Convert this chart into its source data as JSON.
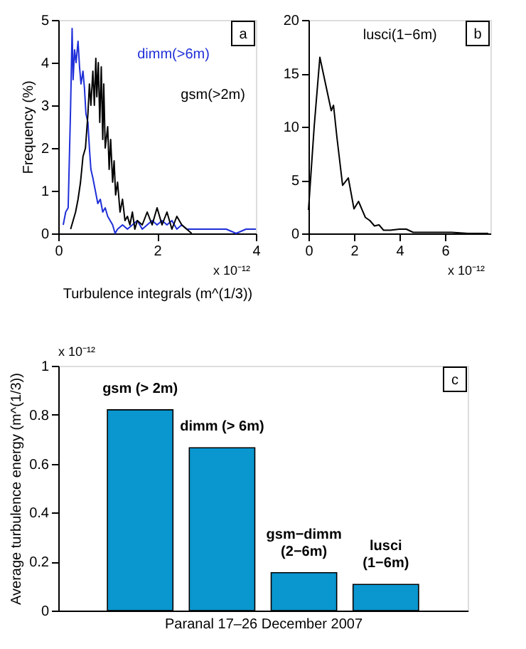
{
  "chart_data": [
    {
      "type": "line",
      "ylabel": "Frequency (%)",
      "xlabel": "Turbulence integrals (m^(1/3))",
      "xlim": [
        0,
        4
      ],
      "xticks": [
        0,
        2,
        4
      ],
      "ylim": [
        0,
        5
      ],
      "yticks": [
        0,
        1,
        2,
        3,
        4,
        5
      ],
      "grid": false,
      "annotations": [
        "a",
        "x 10⁻¹²"
      ],
      "series": [
        {
          "name": "dimm(>6m)",
          "color": "#1f2fd8",
          "x": [
            0.1,
            0.15,
            0.2,
            0.25,
            0.28,
            0.3,
            0.33,
            0.36,
            0.4,
            0.43,
            0.46,
            0.5,
            0.53,
            0.56,
            0.6,
            0.63,
            0.66,
            0.7,
            0.75,
            0.8,
            0.85,
            0.9,
            0.95,
            1.0,
            1.05,
            1.1,
            1.15,
            1.2,
            1.3,
            1.4,
            1.5,
            1.6,
            1.7,
            1.8,
            1.9,
            2.0,
            2.1,
            2.2,
            2.3,
            2.4,
            2.5,
            2.6,
            2.8,
            3.0,
            3.2,
            3.4,
            3.6,
            3.8,
            4.0
          ],
          "values": [
            0.2,
            0.5,
            0.6,
            3.0,
            4.8,
            3.6,
            4.3,
            4.0,
            4.5,
            3.9,
            3.5,
            3.8,
            3.4,
            2.8,
            2.6,
            2.0,
            1.5,
            1.3,
            1.0,
            0.7,
            0.8,
            0.5,
            0.6,
            0.4,
            0.3,
            0.2,
            0.0,
            0.1,
            0.2,
            0.1,
            0.2,
            0.3,
            0.1,
            0.2,
            0.3,
            0.2,
            0.3,
            0.2,
            0.3,
            0.1,
            0.2,
            0.1,
            0.1,
            0.1,
            0.1,
            0.1,
            0.0,
            0.1,
            0.1
          ]
        },
        {
          "name": "gsm(>2m)",
          "color": "#000000",
          "x": [
            0.25,
            0.3,
            0.35,
            0.4,
            0.45,
            0.5,
            0.55,
            0.6,
            0.63,
            0.66,
            0.7,
            0.73,
            0.76,
            0.78,
            0.81,
            0.84,
            0.87,
            0.9,
            0.92,
            0.95,
            1.0,
            1.03,
            1.06,
            1.1,
            1.13,
            1.16,
            1.2,
            1.25,
            1.3,
            1.35,
            1.4,
            1.45,
            1.5,
            1.55,
            1.6,
            1.7,
            1.8,
            1.9,
            2.0,
            2.1,
            2.2,
            2.3,
            2.4,
            2.5,
            2.6,
            2.7
          ],
          "values": [
            0.1,
            0.3,
            0.5,
            0.8,
            1.2,
            1.8,
            2.0,
            2.8,
            3.5,
            3.0,
            3.8,
            3.0,
            4.1,
            3.2,
            4.0,
            2.6,
            3.9,
            2.2,
            3.5,
            2.0,
            2.5,
            1.5,
            2.2,
            1.2,
            1.7,
            0.9,
            1.2,
            0.5,
            0.8,
            0.3,
            0.4,
            0.2,
            0.5,
            0.1,
            0.3,
            0.2,
            0.5,
            0.2,
            0.6,
            0.2,
            0.5,
            0.1,
            0.4,
            0.2,
            0.1,
            0.0
          ]
        }
      ]
    },
    {
      "type": "line",
      "xlim": [
        0,
        8
      ],
      "xticks": [
        0,
        2,
        4,
        6
      ],
      "ylim": [
        0,
        20
      ],
      "yticks": [
        0,
        5,
        10,
        15,
        20
      ],
      "grid": false,
      "annotations": [
        "b",
        "x 10⁻¹²"
      ],
      "series": [
        {
          "name": "lusci(1−6m)",
          "color": "#000000",
          "x": [
            0,
            0.25,
            0.5,
            0.75,
            1.0,
            1.1,
            1.25,
            1.5,
            1.75,
            2.0,
            2.2,
            2.5,
            2.7,
            2.9,
            3.1,
            3.3,
            3.6,
            4.0,
            4.3,
            4.6,
            5.0,
            5.5,
            6.0,
            6.3,
            7.0,
            7.9
          ],
          "values": [
            2.2,
            10,
            16.5,
            14,
            11.5,
            12,
            9,
            4.5,
            5.2,
            2.3,
            3.0,
            1.5,
            1.2,
            0.7,
            0.8,
            0.3,
            0.3,
            0.4,
            0.4,
            0.1,
            0.1,
            0.1,
            0.1,
            0.1,
            0,
            0
          ]
        }
      ]
    },
    {
      "type": "bar",
      "ylabel": "Average turbulence energy (m^(1/3))",
      "xlabel": "Paranal 17–26 December 2007",
      "ylim": [
        0,
        1
      ],
      "yticks": [
        0,
        0.2,
        0.4,
        0.6,
        0.8,
        1
      ],
      "grid": false,
      "annotations": [
        "x 10⁻¹²",
        "c"
      ],
      "categories": [
        "gsm (> 2m)",
        "dimm (> 6m)",
        "gsm−dimm\n(2−6m)",
        "lusci\n(1−6m)"
      ],
      "values": [
        0.82,
        0.665,
        0.155,
        0.107
      ],
      "color": "#0a96cf"
    }
  ]
}
